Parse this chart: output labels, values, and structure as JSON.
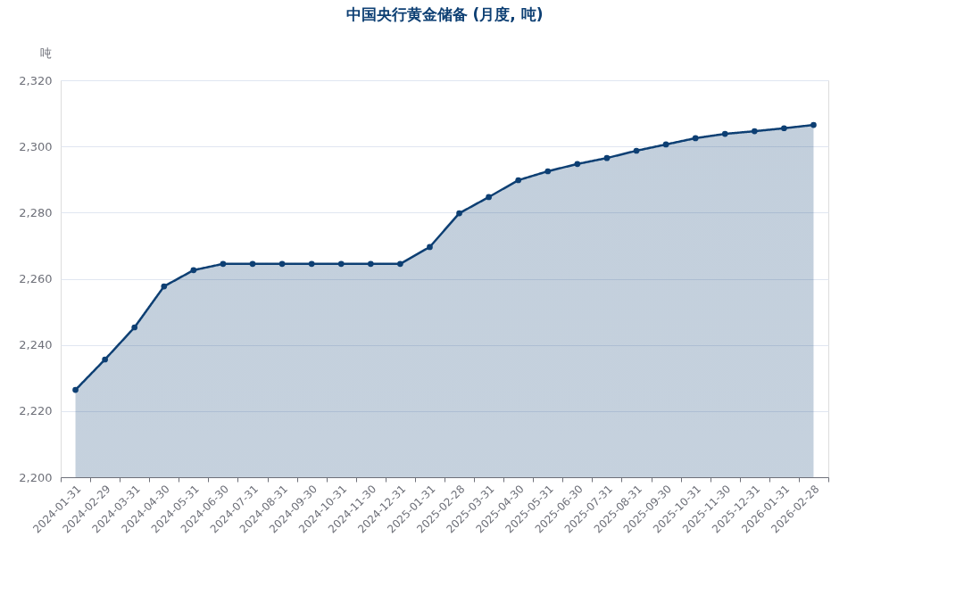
{
  "chart_data": {
    "type": "area",
    "title": "中国央行黄金储备 (月度, 吨)",
    "ylabel": "吨",
    "categories": [
      "2024-01-31",
      "2024-02-29",
      "2024-03-31",
      "2024-04-30",
      "2024-05-31",
      "2024-06-30",
      "2024-07-31",
      "2024-08-31",
      "2024-09-30",
      "2024-10-31",
      "2024-11-30",
      "2024-12-31",
      "2025-01-31",
      "2025-02-28",
      "2025-03-31",
      "2025-04-30",
      "2025-05-31",
      "2025-06-30",
      "2025-07-31",
      "2025-08-31",
      "2025-09-30",
      "2025-10-31",
      "2025-11-30",
      "2025-12-31",
      "2026-01-31",
      "2026-02-28"
    ],
    "series": [
      {
        "color": "#0d3f73",
        "values": [
          2226.4,
          2235.6,
          2245.3,
          2257.7,
          2262.6,
          2264.5,
          2264.5,
          2264.5,
          2264.5,
          2264.5,
          2264.5,
          2264.5,
          2269.6,
          2279.8,
          2284.7,
          2289.8,
          2292.5,
          2294.7,
          2296.5,
          2298.7,
          2300.6,
          2302.5,
          2303.8,
          2304.6,
          2305.5,
          2306.5
        ]
      }
    ],
    "ylim": [
      2200,
      2320
    ],
    "yticks": [
      {
        "value": 2200,
        "label": "2,200"
      },
      {
        "value": 2220,
        "label": "2,220"
      },
      {
        "value": 2240,
        "label": "2,240"
      },
      {
        "value": 2260,
        "label": "2,260"
      },
      {
        "value": 2280,
        "label": "2,280"
      },
      {
        "value": 2300,
        "label": "2,300"
      },
      {
        "value": 2320,
        "label": "2,320"
      }
    ],
    "grid": "y",
    "marker": "circle",
    "line_style": "solid"
  }
}
